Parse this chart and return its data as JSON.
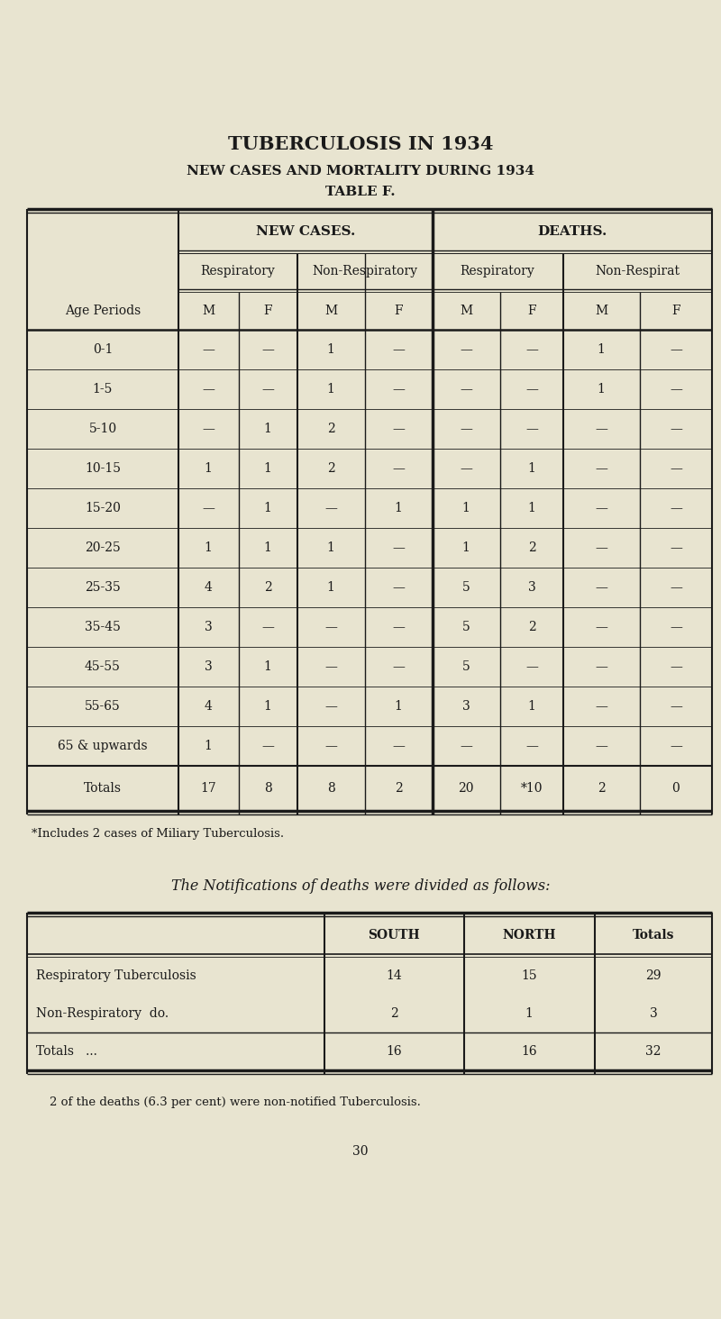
{
  "title1": "TUBERCULOSIS IN 1934",
  "title2": "NEW CASES AND MORTALITY DURING 1934",
  "title3": "TABLE F.",
  "bg_color": "#e8e4d0",
  "text_color": "#1a1a1a",
  "main_table": {
    "age_periods": [
      "0-1",
      "1-5",
      "5-10",
      "10-15",
      "15-20",
      "20-25",
      "25-35",
      "35-45",
      "45-55",
      "55-65",
      "65 & upwards",
      "Totals"
    ],
    "data": [
      [
        "—",
        "—",
        "1",
        "—",
        "—",
        "—",
        "1",
        "—"
      ],
      [
        "—",
        "—",
        "1",
        "—",
        "—",
        "—",
        "1",
        "—"
      ],
      [
        "—",
        "1",
        "2",
        "—",
        "—",
        "—",
        "—",
        "—"
      ],
      [
        "1",
        "1",
        "2",
        "—",
        "—",
        "1",
        "—",
        "—"
      ],
      [
        "—",
        "1",
        "—",
        "1",
        "1",
        "1",
        "—",
        "—"
      ],
      [
        "1",
        "1",
        "1",
        "—",
        "1",
        "2",
        "—",
        "—"
      ],
      [
        "4",
        "2",
        "1",
        "—",
        "5",
        "3",
        "—",
        "—"
      ],
      [
        "3",
        "—",
        "—",
        "—",
        "5",
        "2",
        "—",
        "—"
      ],
      [
        "3",
        "1",
        "—",
        "—",
        "5",
        "—",
        "—",
        "—"
      ],
      [
        "4",
        "1",
        "—",
        "1",
        "3",
        "1",
        "—",
        "—"
      ],
      [
        "1",
        "—",
        "—",
        "—",
        "—",
        "—",
        "—",
        "—"
      ],
      [
        "17",
        "8",
        "8",
        "2",
        "20",
        "*10",
        "2",
        "0"
      ]
    ]
  },
  "footnote1": "*Includes 2 cases of Miliary Tuberculosis.",
  "subtitle2": "The Notifications of deaths were divided as follows:",
  "second_table": {
    "headers": [
      "",
      "SOUTH",
      "NORTH",
      "Totals"
    ],
    "rows": [
      [
        "Respiratory Tuberculosis",
        "14",
        "15",
        "29"
      ],
      [
        "Non-Respiratory  do.",
        "2",
        "1",
        "3"
      ],
      [
        "Totals   ...",
        "16",
        "16",
        "32"
      ]
    ]
  },
  "footnote2": "2 of the deaths (6.3 per cent) were non-notified Tuberculosis.",
  "page_number": "30"
}
